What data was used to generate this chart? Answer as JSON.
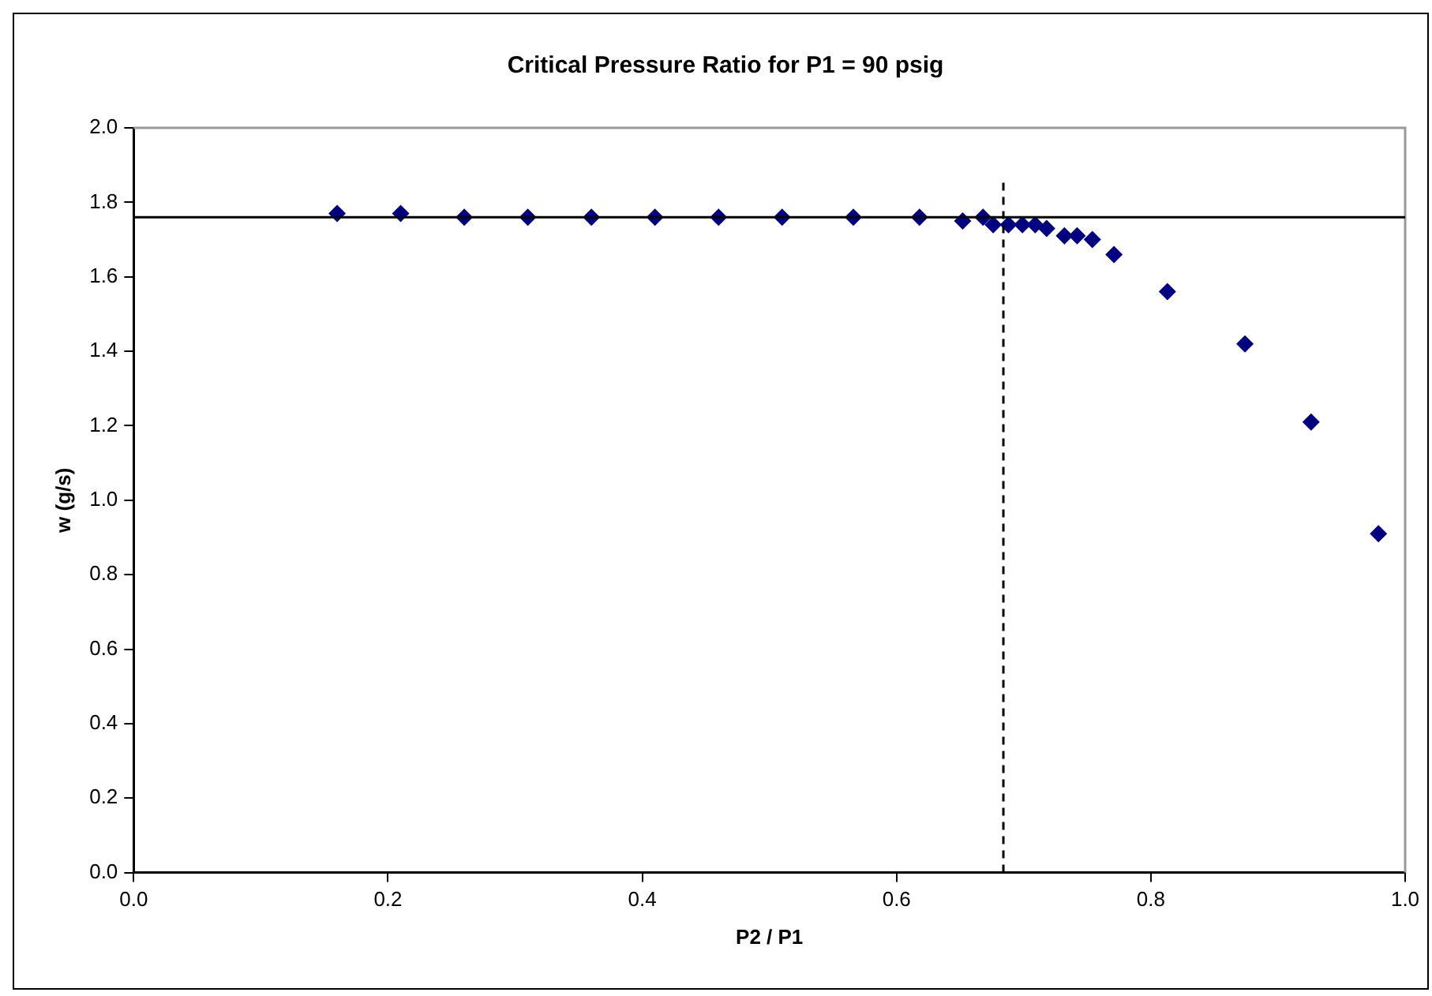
{
  "chart_data": {
    "type": "scatter",
    "title": "Critical Pressure Ratio for P1 = 90 psig",
    "xlabel": "P2 / P1",
    "ylabel": "w (g/s)",
    "series": [
      {
        "color": "#000080",
        "x": [
          0.16,
          0.21,
          0.26,
          0.31,
          0.36,
          0.41,
          0.46,
          0.51,
          0.566,
          0.618,
          0.652,
          0.668,
          0.676,
          0.688,
          0.699,
          0.709,
          0.718,
          0.732,
          0.742,
          0.754,
          0.771,
          0.813,
          0.874,
          0.926,
          0.979
        ],
        "values": [
          1.77,
          1.77,
          1.76,
          1.76,
          1.76,
          1.76,
          1.76,
          1.76,
          1.76,
          1.76,
          1.75,
          1.76,
          1.74,
          1.74,
          1.74,
          1.74,
          1.73,
          1.71,
          1.71,
          1.7,
          1.66,
          1.56,
          1.42,
          1.21,
          0.91
        ]
      }
    ],
    "xlim": [
      0,
      1
    ],
    "xticks": [
      {
        "value": 0,
        "label": "0.0"
      },
      {
        "value": 0.2,
        "label": "0.2"
      },
      {
        "value": 0.4,
        "label": "0.4"
      },
      {
        "value": 0.6,
        "label": "0.6"
      },
      {
        "value": 0.8,
        "label": "0.8"
      },
      {
        "value": 1,
        "label": "1.0"
      }
    ],
    "ylim": [
      0,
      2
    ],
    "yticks": [
      {
        "value": 0,
        "label": "0.0"
      },
      {
        "value": 0.2,
        "label": "0.2"
      },
      {
        "value": 0.4,
        "label": "0.4"
      },
      {
        "value": 0.6,
        "label": "0.6"
      },
      {
        "value": 0.8,
        "label": "0.8"
      },
      {
        "value": 1,
        "label": "1.0"
      },
      {
        "value": 1.2,
        "label": "1.2"
      },
      {
        "value": 1.4,
        "label": "1.4"
      },
      {
        "value": 1.6,
        "label": "1.6"
      },
      {
        "value": 1.8,
        "label": "1.8"
      },
      {
        "value": 2,
        "label": "2.0"
      }
    ],
    "ref_lines": [
      {
        "axis": "y",
        "value": 1.76,
        "color": "#000000",
        "line_style": "solid"
      },
      {
        "axis": "x",
        "value": 0.684,
        "color": "#000000",
        "line_style": "dashed"
      }
    ],
    "grid": false,
    "legend": false,
    "marker": "diamond"
  }
}
